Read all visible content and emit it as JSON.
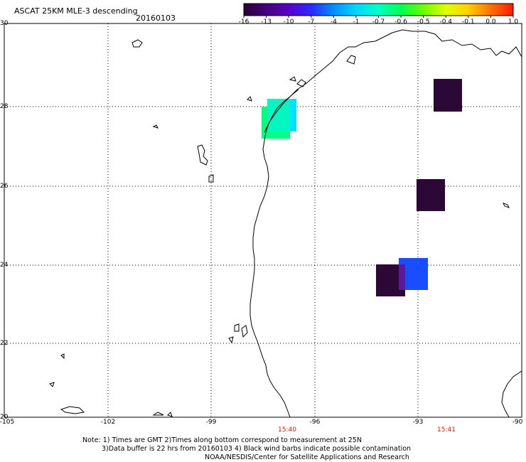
{
  "header": {
    "title": "ASCAT 25KM MLE-3 descending",
    "date": "20160103"
  },
  "colorbar": {
    "labels": [
      "-16",
      "-13",
      "-10",
      "-7",
      "-4",
      "-1",
      "-0.7",
      "-0.6",
      "-0.5",
      "-0.4",
      "-0.1",
      "0.0",
      "1.0"
    ],
    "colors": [
      "#2a0033",
      "#45007a",
      "#5a00c8",
      "#2a2aff",
      "#0090ff",
      "#00d8ff",
      "#00ffc8",
      "#00ff50",
      "#70ff00",
      "#e0ff00",
      "#ffd000",
      "#ff7000",
      "#ff1a00"
    ]
  },
  "axes": {
    "latitudes": [
      "30",
      "28",
      "26",
      "24",
      "22",
      "20"
    ],
    "longitudes": [
      "-105",
      "-102",
      "-99",
      "-96",
      "-93",
      "-90"
    ]
  },
  "times": [
    "15:40",
    "15:41"
  ],
  "notes": {
    "line1": "Note: 1) Times are GMT 2)Times along bottom correspond to measurement at 25N",
    "line2": "3)Data buffer is 22 hrs from 20160103 4) Black wind barbs indicate possible contamination",
    "line3": "NOAA/NESDIS/Center for Satellite Applications and Research"
  },
  "data_cells": [
    {
      "lon": -97.5,
      "lat": 27.5,
      "value": "-0.5",
      "color": "#00ff80"
    },
    {
      "lon": -97.0,
      "lat": 27.75,
      "value": "-0.7",
      "color": "#00e0ff"
    },
    {
      "lon": -92.6,
      "lat": 28.25,
      "value": "-16",
      "color": "#2b0836"
    },
    {
      "lon": -93.0,
      "lat": 25.75,
      "value": "-16",
      "color": "#2b0836"
    },
    {
      "lon": -94.2,
      "lat": 23.6,
      "value": "-16",
      "color": "#2b0836"
    },
    {
      "lon": -93.3,
      "lat": 23.8,
      "value": "-7",
      "color": "#1a4dff"
    }
  ]
}
